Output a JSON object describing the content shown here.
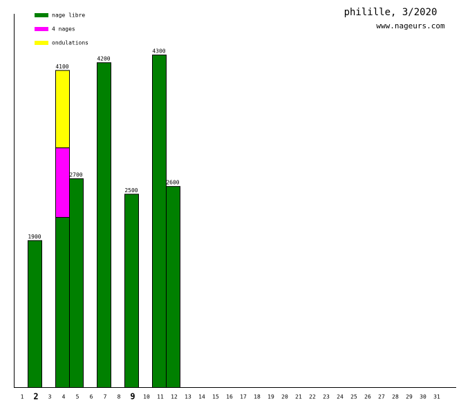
{
  "chart_data": {
    "type": "stacked_bar",
    "title": "philille, 3/2020",
    "subtitle": "www.nageurs.com",
    "categories": [
      "1",
      "2",
      "3",
      "4",
      "5",
      "6",
      "7",
      "8",
      "9",
      "10",
      "11",
      "12",
      "13",
      "14",
      "15",
      "16",
      "17",
      "18",
      "19",
      "20",
      "21",
      "22",
      "23",
      "24",
      "25",
      "26",
      "27",
      "28",
      "29",
      "30",
      "31"
    ],
    "highlighted": [
      "2",
      "9"
    ],
    "series": [
      {
        "name": "nage libre",
        "color": "#008000",
        "values": [
          null,
          1900,
          null,
          2200,
          2700,
          null,
          4200,
          null,
          2500,
          null,
          4300,
          2600,
          null,
          null,
          null,
          null,
          null,
          null,
          null,
          null,
          null,
          null,
          null,
          null,
          null,
          null,
          null,
          null,
          null,
          null,
          null
        ]
      },
      {
        "name": "4 nages",
        "color": "#ff00ff",
        "values": [
          null,
          null,
          null,
          900,
          null,
          null,
          null,
          null,
          null,
          null,
          null,
          null,
          null,
          null,
          null,
          null,
          null,
          null,
          null,
          null,
          null,
          null,
          null,
          null,
          null,
          null,
          null,
          null,
          null,
          null,
          null
        ]
      },
      {
        "name": "ondulations",
        "color": "#ffff00",
        "values": [
          null,
          null,
          null,
          1000,
          null,
          null,
          null,
          null,
          null,
          null,
          null,
          null,
          null,
          null,
          null,
          null,
          null,
          null,
          null,
          null,
          null,
          null,
          null,
          null,
          null,
          null,
          null,
          null,
          null,
          null,
          null
        ]
      }
    ],
    "totals": [
      null,
      1900,
      null,
      4100,
      2700,
      null,
      4200,
      null,
      2500,
      null,
      4300,
      2600,
      null,
      null,
      null,
      null,
      null,
      null,
      null,
      null,
      null,
      null,
      null,
      null,
      null,
      null,
      null,
      null,
      null,
      null,
      null
    ]
  }
}
